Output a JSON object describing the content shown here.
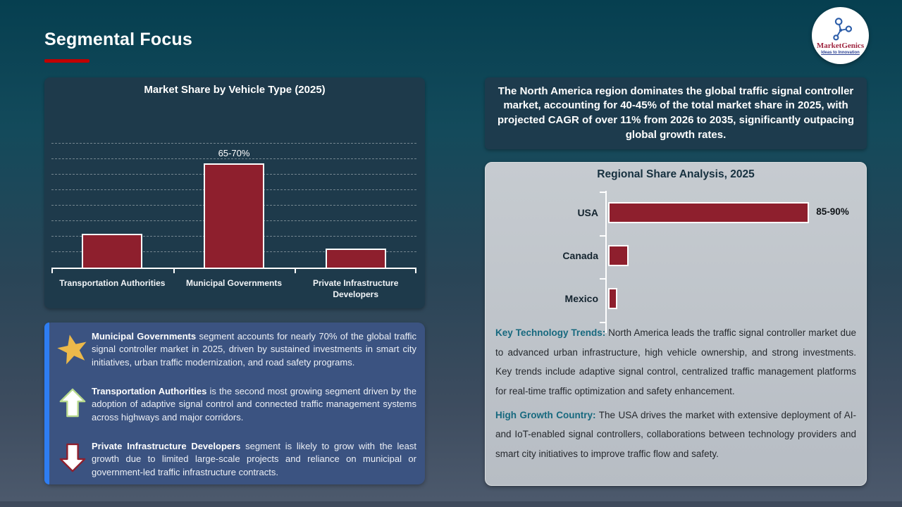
{
  "header": {
    "title": "Segmental Focus",
    "logo": {
      "name": "MarketGenics",
      "tagline": "Ideas to Innovation",
      "icon": "network-molecule-icon"
    }
  },
  "colors": {
    "accent_red": "#c00000",
    "bar_fill": "#8e1f2d",
    "bar_border": "#ffffff",
    "chart_panel_bg": "#1e3a4b",
    "takeaway_bg": "#3b5381",
    "takeaway_stripe": "#2e7df2",
    "highlight_bg": "#1d3b4d",
    "gray_panel_bg": "#bfc5ca",
    "teal_lead": "#17697f",
    "star_gold": "#ecb94a"
  },
  "chart_data": [
    {
      "type": "bar",
      "title": "Market Share by Vehicle Type (2025)",
      "categories": [
        "Transportation Authorities",
        "Municipal Governments",
        "Private Infrastructure Developers"
      ],
      "values": [
        22,
        67.5,
        12.5
      ],
      "value_labels": [
        "",
        "65-70%",
        ""
      ],
      "xlabel": "",
      "ylabel": "",
      "ylim": [
        0,
        100
      ],
      "grid": "horizontal-dashed-10pct-steps",
      "legend": "none",
      "bar_color": "#8e1f2d"
    },
    {
      "type": "bar-horizontal",
      "title": "Regional Share Analysis, 2025",
      "categories": [
        "USA",
        "Canada",
        "Mexico"
      ],
      "values": [
        87.5,
        9,
        4
      ],
      "value_labels": [
        "85-90%",
        "",
        ""
      ],
      "xlabel": "",
      "ylabel": "",
      "xlim": [
        0,
        100
      ],
      "grid": "off",
      "legend": "none",
      "bar_color": "#8e1f2d"
    }
  ],
  "takeaways": {
    "items": [
      {
        "icon": "star-icon",
        "lead": "Municipal Governments",
        "text": " segment accounts for nearly 70% of the global traffic signal controller market in 2025, driven by sustained investments in smart city initiatives, urban traffic modernization, and road safety programs."
      },
      {
        "icon": "up-arrow-icon",
        "lead": "Transportation Authorities",
        "text": " is the second most growing segment driven by the adoption of adaptive signal control and connected traffic management systems across highways and major corridors."
      },
      {
        "icon": "down-arrow-icon",
        "lead": "Private Infrastructure Developers",
        "text": " segment is likely to grow with the least growth due to limited large-scale projects and reliance on municipal or government-led traffic infrastructure contracts."
      }
    ]
  },
  "right": {
    "highlight": "The North America region dominates the global traffic signal controller market, accounting for 40-45% of the total market share in 2025, with projected CAGR of over 11% from 2026 to 2035, significantly outpacing global growth rates.",
    "regional_title": "Regional Share Analysis, 2025",
    "paragraphs": [
      {
        "lead": "Key Technology Trends:",
        "text": " North America leads the traffic signal controller market due to advanced urban infrastructure, high vehicle ownership, and strong investments. Key trends include adaptive signal control, centralized traffic management platforms for real-time traffic optimization and safety enhancement."
      },
      {
        "lead": "High Growth Country:",
        "text": " The USA drives the market with extensive deployment of AI- and IoT-enabled signal controllers, collaborations between technology providers and smart city initiatives to improve traffic flow and safety."
      }
    ]
  }
}
